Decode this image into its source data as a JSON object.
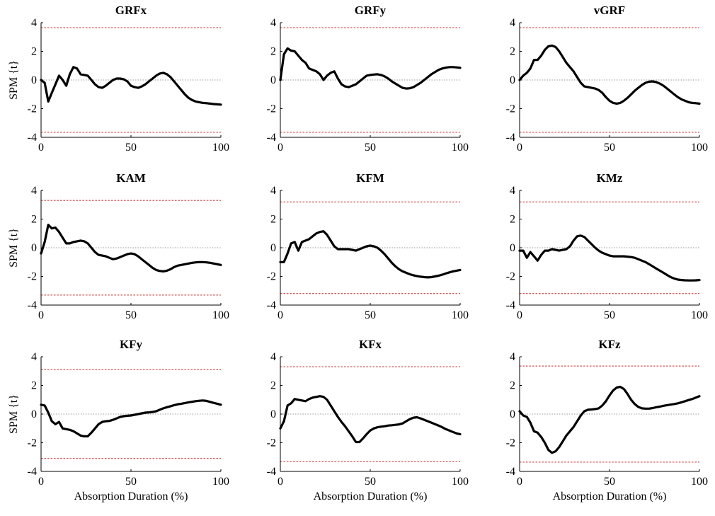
{
  "chart_data": [
    {
      "type": "line",
      "title": "GRFx",
      "ylabel": "SPM {t}",
      "xlabel": "",
      "xlim": [
        0,
        100
      ],
      "ylim": [
        -4,
        4
      ],
      "xticks": [
        0,
        50,
        100
      ],
      "yticks": [
        -4,
        -2,
        0,
        2,
        4
      ],
      "threshold": 3.65,
      "x": [
        0,
        2,
        4,
        6,
        8,
        10,
        12,
        14,
        16,
        18,
        20,
        22,
        24,
        26,
        28,
        30,
        32,
        34,
        36,
        38,
        40,
        42,
        44,
        46,
        48,
        50,
        52,
        54,
        56,
        58,
        60,
        62,
        64,
        66,
        68,
        70,
        72,
        74,
        76,
        78,
        80,
        82,
        84,
        86,
        88,
        90,
        92,
        94,
        96,
        98,
        100
      ],
      "y": [
        0.0,
        -0.2,
        -1.5,
        -0.9,
        -0.3,
        0.3,
        0.0,
        -0.4,
        0.4,
        0.9,
        0.8,
        0.4,
        0.35,
        0.3,
        0.0,
        -0.3,
        -0.5,
        -0.55,
        -0.4,
        -0.2,
        0.0,
        0.1,
        0.1,
        0.05,
        -0.1,
        -0.4,
        -0.5,
        -0.55,
        -0.45,
        -0.3,
        -0.1,
        0.1,
        0.3,
        0.45,
        0.5,
        0.4,
        0.2,
        -0.1,
        -0.4,
        -0.7,
        -1.0,
        -1.25,
        -1.4,
        -1.5,
        -1.55,
        -1.6,
        -1.62,
        -1.65,
        -1.68,
        -1.7,
        -1.72
      ]
    },
    {
      "type": "line",
      "title": "GRFy",
      "ylabel": "",
      "xlabel": "",
      "xlim": [
        0,
        100
      ],
      "ylim": [
        -4,
        4
      ],
      "xticks": [
        0,
        50,
        100
      ],
      "yticks": [
        -4,
        -2,
        0,
        2,
        4
      ],
      "threshold": 3.65,
      "x": [
        0,
        2,
        4,
        6,
        8,
        10,
        12,
        14,
        16,
        18,
        20,
        22,
        24,
        26,
        28,
        30,
        32,
        34,
        36,
        38,
        40,
        42,
        44,
        46,
        48,
        50,
        52,
        54,
        56,
        58,
        60,
        62,
        64,
        66,
        68,
        70,
        72,
        74,
        76,
        78,
        80,
        82,
        84,
        86,
        88,
        90,
        92,
        94,
        96,
        98,
        100
      ],
      "y": [
        0.0,
        1.8,
        2.2,
        2.05,
        2.0,
        1.7,
        1.4,
        1.2,
        0.8,
        0.7,
        0.6,
        0.4,
        0.0,
        0.3,
        0.5,
        0.6,
        0.1,
        -0.3,
        -0.45,
        -0.5,
        -0.4,
        -0.3,
        -0.1,
        0.1,
        0.3,
        0.35,
        0.38,
        0.4,
        0.35,
        0.25,
        0.1,
        -0.1,
        -0.25,
        -0.4,
        -0.55,
        -0.6,
        -0.58,
        -0.5,
        -0.35,
        -0.2,
        0.0,
        0.2,
        0.4,
        0.55,
        0.7,
        0.8,
        0.86,
        0.9,
        0.9,
        0.88,
        0.85
      ]
    },
    {
      "type": "line",
      "title": "vGRF",
      "ylabel": "",
      "xlabel": "",
      "xlim": [
        0,
        100
      ],
      "ylim": [
        -4,
        4
      ],
      "xticks": [
        0,
        50,
        100
      ],
      "yticks": [
        -4,
        -2,
        0,
        2,
        4
      ],
      "threshold": 3.65,
      "x": [
        0,
        2,
        4,
        6,
        8,
        10,
        12,
        14,
        16,
        18,
        20,
        22,
        24,
        26,
        28,
        30,
        32,
        34,
        36,
        38,
        40,
        42,
        44,
        46,
        48,
        50,
        52,
        54,
        56,
        58,
        60,
        62,
        64,
        66,
        68,
        70,
        72,
        74,
        76,
        78,
        80,
        82,
        84,
        86,
        88,
        90,
        92,
        94,
        96,
        98,
        100
      ],
      "y": [
        0.0,
        0.3,
        0.5,
        0.8,
        1.4,
        1.4,
        1.7,
        2.1,
        2.35,
        2.4,
        2.3,
        2.0,
        1.6,
        1.2,
        0.9,
        0.6,
        0.2,
        -0.2,
        -0.45,
        -0.5,
        -0.55,
        -0.6,
        -0.7,
        -0.9,
        -1.2,
        -1.45,
        -1.6,
        -1.65,
        -1.6,
        -1.45,
        -1.25,
        -1.0,
        -0.75,
        -0.55,
        -0.35,
        -0.2,
        -0.12,
        -0.1,
        -0.15,
        -0.25,
        -0.4,
        -0.6,
        -0.8,
        -1.0,
        -1.2,
        -1.35,
        -1.45,
        -1.55,
        -1.6,
        -1.62,
        -1.65
      ]
    },
    {
      "type": "line",
      "title": "KAM",
      "ylabel": "SPM {t}",
      "xlabel": "",
      "xlim": [
        0,
        100
      ],
      "ylim": [
        -4,
        4
      ],
      "xticks": [
        0,
        50,
        100
      ],
      "yticks": [
        -4,
        -2,
        0,
        2,
        4
      ],
      "threshold": 3.3,
      "x": [
        0,
        2,
        4,
        6,
        8,
        10,
        12,
        14,
        16,
        18,
        20,
        22,
        24,
        26,
        28,
        30,
        32,
        34,
        36,
        38,
        40,
        42,
        44,
        46,
        48,
        50,
        52,
        54,
        56,
        58,
        60,
        62,
        64,
        66,
        68,
        70,
        72,
        74,
        76,
        78,
        80,
        82,
        84,
        86,
        88,
        90,
        92,
        94,
        96,
        98,
        100
      ],
      "y": [
        -0.4,
        0.4,
        1.6,
        1.35,
        1.4,
        1.1,
        0.7,
        0.3,
        0.3,
        0.4,
        0.45,
        0.5,
        0.45,
        0.3,
        0.0,
        -0.3,
        -0.5,
        -0.55,
        -0.6,
        -0.7,
        -0.8,
        -0.75,
        -0.65,
        -0.55,
        -0.45,
        -0.4,
        -0.45,
        -0.6,
        -0.8,
        -1.0,
        -1.2,
        -1.4,
        -1.55,
        -1.62,
        -1.65,
        -1.6,
        -1.5,
        -1.35,
        -1.25,
        -1.2,
        -1.15,
        -1.1,
        -1.05,
        -1.02,
        -1.0,
        -1.0,
        -1.02,
        -1.05,
        -1.1,
        -1.15,
        -1.2
      ]
    },
    {
      "type": "line",
      "title": "KFM",
      "ylabel": "",
      "xlabel": "",
      "xlim": [
        0,
        100
      ],
      "ylim": [
        -4,
        4
      ],
      "xticks": [
        0,
        50,
        100
      ],
      "yticks": [
        -4,
        -2,
        0,
        2,
        4
      ],
      "threshold": 3.2,
      "x": [
        0,
        2,
        4,
        6,
        8,
        10,
        12,
        14,
        16,
        18,
        20,
        22,
        24,
        26,
        28,
        30,
        32,
        34,
        36,
        38,
        40,
        42,
        44,
        46,
        48,
        50,
        52,
        54,
        56,
        58,
        60,
        62,
        64,
        66,
        68,
        70,
        72,
        74,
        76,
        78,
        80,
        82,
        84,
        86,
        88,
        90,
        92,
        94,
        96,
        98,
        100
      ],
      "y": [
        -1.0,
        -1.0,
        -0.4,
        0.3,
        0.4,
        -0.2,
        0.4,
        0.5,
        0.6,
        0.8,
        1.0,
        1.1,
        1.15,
        0.9,
        0.5,
        0.1,
        -0.1,
        -0.1,
        -0.1,
        -0.1,
        -0.15,
        -0.2,
        -0.1,
        0.0,
        0.1,
        0.15,
        0.1,
        0.0,
        -0.2,
        -0.45,
        -0.75,
        -1.05,
        -1.3,
        -1.5,
        -1.65,
        -1.75,
        -1.85,
        -1.92,
        -1.98,
        -2.02,
        -2.05,
        -2.07,
        -2.05,
        -2.0,
        -1.95,
        -1.88,
        -1.8,
        -1.72,
        -1.65,
        -1.6,
        -1.55
      ]
    },
    {
      "type": "line",
      "title": "KMz",
      "ylabel": "",
      "xlabel": "",
      "xlim": [
        0,
        100
      ],
      "ylim": [
        -4,
        4
      ],
      "xticks": [
        0,
        50,
        100
      ],
      "yticks": [
        -4,
        -2,
        0,
        2,
        4
      ],
      "threshold": 3.2,
      "x": [
        0,
        2,
        4,
        6,
        8,
        10,
        12,
        14,
        16,
        18,
        20,
        22,
        24,
        26,
        28,
        30,
        32,
        34,
        36,
        38,
        40,
        42,
        44,
        46,
        48,
        50,
        52,
        54,
        56,
        58,
        60,
        62,
        64,
        66,
        68,
        70,
        72,
        74,
        76,
        78,
        80,
        82,
        84,
        86,
        88,
        90,
        92,
        94,
        96,
        98,
        100
      ],
      "y": [
        -0.2,
        -0.2,
        -0.7,
        -0.3,
        -0.6,
        -0.9,
        -0.5,
        -0.2,
        -0.2,
        -0.1,
        -0.15,
        -0.2,
        -0.15,
        -0.1,
        0.1,
        0.5,
        0.8,
        0.85,
        0.75,
        0.5,
        0.25,
        0.0,
        -0.2,
        -0.35,
        -0.45,
        -0.55,
        -0.6,
        -0.6,
        -0.6,
        -0.6,
        -0.62,
        -0.65,
        -0.7,
        -0.8,
        -0.9,
        -1.0,
        -1.15,
        -1.3,
        -1.45,
        -1.6,
        -1.75,
        -1.9,
        -2.05,
        -2.15,
        -2.22,
        -2.25,
        -2.27,
        -2.28,
        -2.28,
        -2.27,
        -2.25
      ]
    },
    {
      "type": "line",
      "title": "KFy",
      "ylabel": "SPM {t}",
      "xlabel": "Absorption Duration (%)",
      "xlim": [
        0,
        100
      ],
      "ylim": [
        -4,
        4
      ],
      "xticks": [
        0,
        50,
        100
      ],
      "yticks": [
        -4,
        -2,
        0,
        2,
        4
      ],
      "threshold": 3.1,
      "x": [
        0,
        2,
        4,
        6,
        8,
        10,
        12,
        14,
        16,
        18,
        20,
        22,
        24,
        26,
        28,
        30,
        32,
        34,
        36,
        38,
        40,
        42,
        44,
        46,
        48,
        50,
        52,
        54,
        56,
        58,
        60,
        62,
        64,
        66,
        68,
        70,
        72,
        74,
        76,
        78,
        80,
        82,
        84,
        86,
        88,
        90,
        92,
        94,
        96,
        98,
        100
      ],
      "y": [
        0.65,
        0.6,
        0.1,
        -0.5,
        -0.7,
        -0.55,
        -1.0,
        -1.05,
        -1.1,
        -1.2,
        -1.35,
        -1.5,
        -1.55,
        -1.55,
        -1.3,
        -1.0,
        -0.7,
        -0.55,
        -0.5,
        -0.48,
        -0.4,
        -0.3,
        -0.2,
        -0.15,
        -0.12,
        -0.1,
        -0.05,
        0.0,
        0.05,
        0.1,
        0.12,
        0.15,
        0.2,
        0.3,
        0.4,
        0.48,
        0.55,
        0.62,
        0.68,
        0.72,
        0.77,
        0.82,
        0.86,
        0.9,
        0.93,
        0.95,
        0.92,
        0.85,
        0.78,
        0.72,
        0.65
      ]
    },
    {
      "type": "line",
      "title": "KFx",
      "ylabel": "",
      "xlabel": "Absorption Duration (%)",
      "xlim": [
        0,
        100
      ],
      "ylim": [
        -4,
        4
      ],
      "xticks": [
        0,
        50,
        100
      ],
      "yticks": [
        -4,
        -2,
        0,
        2,
        4
      ],
      "threshold": 3.3,
      "x": [
        0,
        2,
        4,
        6,
        8,
        10,
        12,
        14,
        16,
        18,
        20,
        22,
        24,
        26,
        28,
        30,
        32,
        34,
        36,
        38,
        40,
        42,
        44,
        46,
        48,
        50,
        52,
        54,
        56,
        58,
        60,
        62,
        64,
        66,
        68,
        70,
        72,
        74,
        76,
        78,
        80,
        82,
        84,
        86,
        88,
        90,
        92,
        94,
        96,
        98,
        100
      ],
      "y": [
        -1.0,
        -0.5,
        0.6,
        0.75,
        1.05,
        1.0,
        0.95,
        0.9,
        1.05,
        1.15,
        1.2,
        1.25,
        1.2,
        1.0,
        0.6,
        0.2,
        -0.2,
        -0.55,
        -0.85,
        -1.2,
        -1.55,
        -1.95,
        -1.95,
        -1.7,
        -1.4,
        -1.15,
        -1.0,
        -0.92,
        -0.88,
        -0.85,
        -0.8,
        -0.78,
        -0.75,
        -0.72,
        -0.65,
        -0.5,
        -0.35,
        -0.25,
        -0.22,
        -0.3,
        -0.4,
        -0.5,
        -0.6,
        -0.7,
        -0.8,
        -0.92,
        -1.05,
        -1.15,
        -1.25,
        -1.35,
        -1.4
      ]
    },
    {
      "type": "line",
      "title": "KFz",
      "ylabel": "",
      "xlabel": "Absorption Duration (%)",
      "xlim": [
        0,
        100
      ],
      "ylim": [
        -4,
        4
      ],
      "xticks": [
        0,
        50,
        100
      ],
      "yticks": [
        -4,
        -2,
        0,
        2,
        4
      ],
      "threshold": 3.35,
      "x": [
        0,
        2,
        4,
        6,
        8,
        10,
        12,
        14,
        16,
        18,
        20,
        22,
        24,
        26,
        28,
        30,
        32,
        34,
        36,
        38,
        40,
        42,
        44,
        46,
        48,
        50,
        52,
        54,
        56,
        58,
        60,
        62,
        64,
        66,
        68,
        70,
        72,
        74,
        76,
        78,
        80,
        82,
        84,
        86,
        88,
        90,
        92,
        94,
        96,
        98,
        100
      ],
      "y": [
        0.2,
        -0.1,
        -0.2,
        -0.6,
        -1.2,
        -1.3,
        -1.6,
        -2.0,
        -2.5,
        -2.7,
        -2.6,
        -2.3,
        -1.9,
        -1.5,
        -1.2,
        -0.9,
        -0.5,
        -0.1,
        0.2,
        0.3,
        0.32,
        0.35,
        0.4,
        0.6,
        0.9,
        1.3,
        1.65,
        1.85,
        1.9,
        1.75,
        1.4,
        1.0,
        0.7,
        0.5,
        0.4,
        0.38,
        0.38,
        0.42,
        0.48,
        0.52,
        0.58,
        0.62,
        0.66,
        0.7,
        0.75,
        0.82,
        0.9,
        0.98,
        1.05,
        1.15,
        1.25
      ]
    }
  ]
}
